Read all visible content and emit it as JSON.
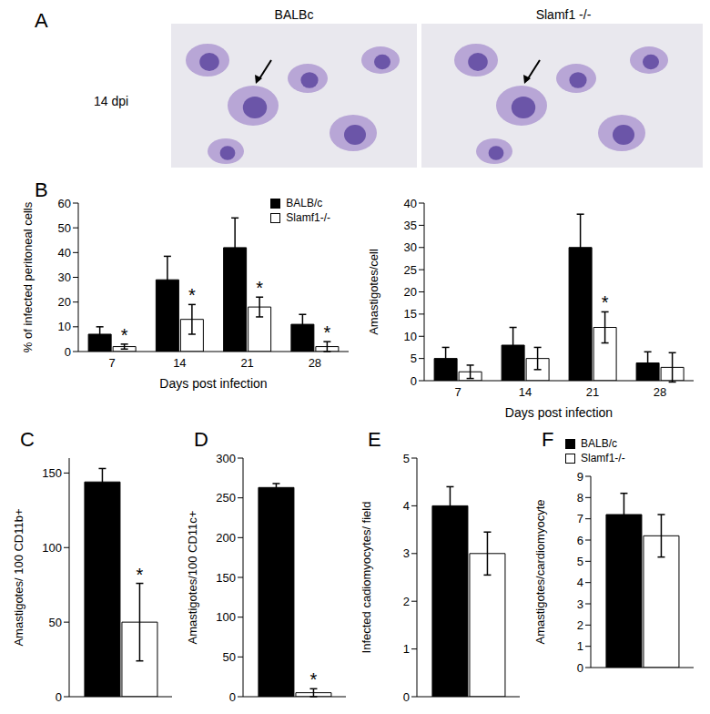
{
  "panel_a": {
    "label": "A",
    "row_label": "14 dpi",
    "images": [
      {
        "title": "BALBc"
      },
      {
        "title": "Slamf1 -/-"
      }
    ]
  },
  "chart_data": [
    {
      "type": "bar",
      "label": "B",
      "x_label": "Days post infection",
      "y_label": "% of  infected peritoneal cells",
      "categories": [
        "7",
        "14",
        "21",
        "28"
      ],
      "ylim": [
        0,
        60
      ],
      "yticks": [
        0,
        10,
        20,
        30,
        40,
        50,
        60
      ],
      "legend": "upper right",
      "series": [
        {
          "name": "BALB/c",
          "color": "#000000",
          "values": [
            7,
            29,
            42,
            11
          ],
          "errors": [
            3,
            9.5,
            12,
            4
          ]
        },
        {
          "name": "Slamf1-/-",
          "color": "#ffffff",
          "values": [
            2,
            13,
            18,
            2
          ],
          "errors": [
            1,
            6,
            4,
            2
          ]
        }
      ],
      "annotations": [
        {
          "text": "*",
          "series": 1,
          "index": 0
        },
        {
          "text": "*",
          "series": 1,
          "index": 1
        },
        {
          "text": "*",
          "series": 1,
          "index": 2
        },
        {
          "text": "*",
          "series": 1,
          "index": 3
        }
      ]
    },
    {
      "type": "bar",
      "x_label": "Days post infection",
      "y_label": "Amastigotes/cell",
      "categories": [
        "7",
        "14",
        "21",
        "28"
      ],
      "ylim": [
        0,
        40
      ],
      "yticks": [
        0,
        5,
        10,
        15,
        20,
        25,
        30,
        35,
        40
      ],
      "series": [
        {
          "name": "BALB/c",
          "color": "#000000",
          "values": [
            5,
            8,
            30,
            4
          ],
          "errors": [
            2.5,
            4,
            7.5,
            2.5
          ]
        },
        {
          "name": "Slamf1-/-",
          "color": "#ffffff",
          "values": [
            2,
            5,
            12,
            3
          ],
          "errors": [
            1.5,
            2.5,
            3.5,
            3.3
          ]
        }
      ],
      "annotations": [
        {
          "text": "*",
          "series": 1,
          "index": 2
        }
      ]
    },
    {
      "type": "bar",
      "label": "C",
      "y_label": "Amastigotes/ 100 CD11b+",
      "categories": [
        null
      ],
      "ylim": [
        0,
        160
      ],
      "yticks": [
        0,
        50,
        100,
        150
      ],
      "series": [
        {
          "name": "BALB/c",
          "color": "#000000",
          "values": [
            144
          ],
          "errors": [
            9
          ]
        },
        {
          "name": "Slamf1-/-",
          "color": "#ffffff",
          "values": [
            50
          ],
          "errors": [
            26
          ]
        }
      ],
      "annotations": [
        {
          "text": "*",
          "series": 1,
          "index": 0
        }
      ]
    },
    {
      "type": "bar",
      "label": "D",
      "y_label": "Amastigotes/100 CD11c+",
      "categories": [
        null
      ],
      "ylim": [
        0,
        300
      ],
      "yticks": [
        0,
        50,
        100,
        150,
        200,
        250,
        300
      ],
      "series": [
        {
          "name": "BALB/c",
          "color": "#000000",
          "values": [
            263
          ],
          "errors": [
            5
          ]
        },
        {
          "name": "Slamf1-/-",
          "color": "#ffffff",
          "values": [
            5
          ],
          "errors": [
            5
          ]
        }
      ],
      "annotations": [
        {
          "text": "*",
          "series": 1,
          "index": 0
        }
      ]
    },
    {
      "type": "bar",
      "label": "E",
      "y_label": "Infected cadiomyocytes/ field",
      "categories": [
        null
      ],
      "ylim": [
        0,
        5
      ],
      "yticks": [
        0,
        1,
        2,
        3,
        4,
        5
      ],
      "series": [
        {
          "name": "BALB/c",
          "color": "#000000",
          "values": [
            4
          ],
          "errors": [
            0.4
          ]
        },
        {
          "name": "Slamf1-/-",
          "color": "#ffffff",
          "values": [
            3
          ],
          "errors": [
            0.45
          ]
        }
      ],
      "annotations": []
    },
    {
      "type": "bar",
      "label": "F",
      "y_label": "Amastigotes/cardiomyocyte",
      "categories": [
        null
      ],
      "ylim": [
        0,
        9
      ],
      "yticks": [
        0,
        1,
        2,
        3,
        4,
        5,
        6,
        7,
        8,
        9
      ],
      "legend": "top",
      "series": [
        {
          "name": "BALB/c",
          "color": "#000000",
          "values": [
            7.2
          ],
          "errors": [
            1
          ]
        },
        {
          "name": "Slamf1-/-",
          "color": "#ffffff",
          "values": [
            6.2
          ],
          "errors": [
            1
          ]
        }
      ],
      "annotations": []
    }
  ]
}
